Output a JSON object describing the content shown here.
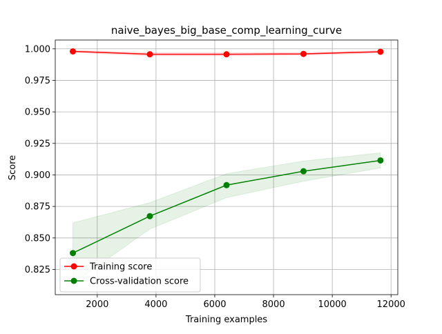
{
  "chart_data": {
    "type": "line",
    "title": "naive_bayes_big_base_comp_learning_curve",
    "xlabel": "Training examples",
    "ylabel": "Score",
    "xlim": [
      570,
      12230
    ],
    "ylim": [
      0.805,
      1.007
    ],
    "x": [
      1170,
      3790,
      6400,
      9020,
      11640
    ],
    "xticks": [
      2000,
      4000,
      6000,
      8000,
      10000,
      12000
    ],
    "xtick_labels": [
      "2000",
      "4000",
      "6000",
      "8000",
      "10000",
      "12000"
    ],
    "yticks": [
      0.825,
      0.85,
      0.875,
      0.9,
      0.925,
      0.95,
      0.975,
      1.0
    ],
    "ytick_labels": [
      "0.825",
      "0.850",
      "0.875",
      "0.900",
      "0.925",
      "0.950",
      "0.975",
      "1.000"
    ],
    "grid": true,
    "legend_position": "lower-left",
    "series": [
      {
        "name": "Training score",
        "color": "#ff0000",
        "values": [
          0.998,
          0.9957,
          0.9957,
          0.996,
          0.9977
        ],
        "band_lower": [
          0.9972,
          0.9945,
          0.9945,
          0.995,
          0.9968
        ],
        "band_upper": [
          0.9988,
          0.9969,
          0.9969,
          0.997,
          0.9986
        ]
      },
      {
        "name": "Cross-validation score",
        "color": "#008000",
        "values": [
          0.838,
          0.8673,
          0.8919,
          0.9029,
          0.9115
        ],
        "band_lower": [
          0.814,
          0.857,
          0.882,
          0.895,
          0.9055
        ],
        "band_upper": [
          0.862,
          0.878,
          0.901,
          0.911,
          0.9175
        ]
      }
    ]
  }
}
